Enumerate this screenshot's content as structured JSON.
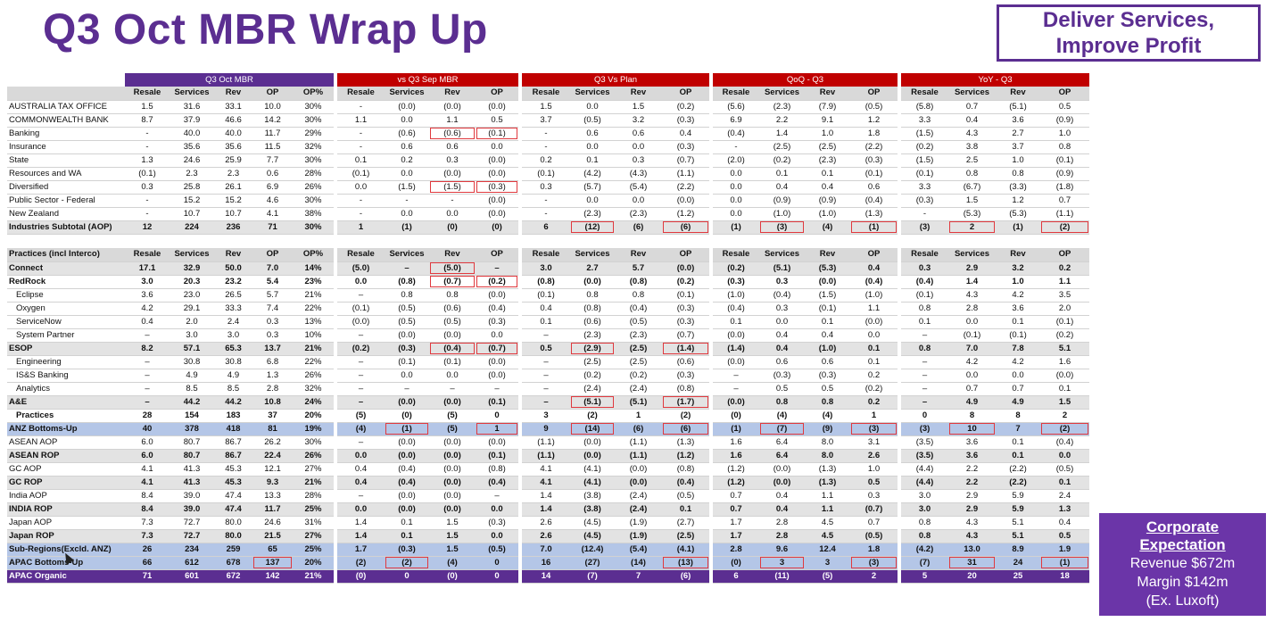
{
  "title": "Q3 Oct MBR Wrap Up",
  "callout": {
    "line1": "Deliver Services,",
    "line2": "Improve Profit"
  },
  "corporate": {
    "heading_line1": "Corporate",
    "heading_line2": "Expectation",
    "revenue": "Revenue $672m",
    "margin": "Margin $142m",
    "note": "(Ex. Luxoft)"
  },
  "groups": [
    "Q3 Oct MBR",
    "vs Q3 Sep MBR",
    "Q3 Vs Plan",
    "QoQ - Q3",
    "YoY - Q3"
  ],
  "col_headers_g1": [
    "Resale",
    "Services",
    "Rev",
    "OP",
    "OP%"
  ],
  "col_headers_gx": [
    "Resale",
    "Services",
    "Rev",
    "OP"
  ],
  "section1_label": "",
  "section2_label": "Practices (incl Interco)",
  "section1": [
    {
      "label": "AUSTRALIA TAX OFFICE",
      "style": "",
      "cells": [
        "1.5",
        "31.6",
        "33.1",
        "10.0",
        "30%",
        "-",
        "(0.0)",
        "(0.0)",
        "(0.0)",
        "1.5",
        "0.0",
        "1.5",
        "(0.2)",
        "(5.6)",
        "(2.3)",
        "(7.9)",
        "(0.5)",
        "(5.8)",
        "0.7",
        "(5.1)",
        "0.5"
      ],
      "hl": []
    },
    {
      "label": "COMMONWEALTH BANK",
      "style": "",
      "cells": [
        "8.7",
        "37.9",
        "46.6",
        "14.2",
        "30%",
        "1.1",
        "0.0",
        "1.1",
        "0.5",
        "3.7",
        "(0.5)",
        "3.2",
        "(0.3)",
        "6.9",
        "2.2",
        "9.1",
        "1.2",
        "3.3",
        "0.4",
        "3.6",
        "(0.9)"
      ],
      "hl": []
    },
    {
      "label": "Banking",
      "style": "",
      "cells": [
        "-",
        "40.0",
        "40.0",
        "11.7",
        "29%",
        "-",
        "(0.6)",
        "(0.6)",
        "(0.1)",
        "-",
        "0.6",
        "0.6",
        "0.4",
        "(0.4)",
        "1.4",
        "1.0",
        "1.8",
        "(1.5)",
        "4.3",
        "2.7",
        "1.0"
      ],
      "hl": [
        7,
        8
      ]
    },
    {
      "label": "Insurance",
      "style": "",
      "cells": [
        "-",
        "35.6",
        "35.6",
        "11.5",
        "32%",
        "-",
        "0.6",
        "0.6",
        "0.0",
        "-",
        "0.0",
        "0.0",
        "(0.3)",
        "-",
        "(2.5)",
        "(2.5)",
        "(2.2)",
        "(0.2)",
        "3.8",
        "3.7",
        "0.8"
      ],
      "hl": []
    },
    {
      "label": "State",
      "style": "",
      "cells": [
        "1.3",
        "24.6",
        "25.9",
        "7.7",
        "30%",
        "0.1",
        "0.2",
        "0.3",
        "(0.0)",
        "0.2",
        "0.1",
        "0.3",
        "(0.7)",
        "(2.0)",
        "(0.2)",
        "(2.3)",
        "(0.3)",
        "(1.5)",
        "2.5",
        "1.0",
        "(0.1)"
      ],
      "hl": []
    },
    {
      "label": "Resources and WA",
      "style": "",
      "cells": [
        "(0.1)",
        "2.3",
        "2.3",
        "0.6",
        "28%",
        "(0.1)",
        "0.0",
        "(0.0)",
        "(0.0)",
        "(0.1)",
        "(4.2)",
        "(4.3)",
        "(1.1)",
        "0.0",
        "0.1",
        "0.1",
        "(0.1)",
        "(0.1)",
        "0.8",
        "0.8",
        "(0.9)"
      ],
      "hl": []
    },
    {
      "label": "Diversified",
      "style": "",
      "cells": [
        "0.3",
        "25.8",
        "26.1",
        "6.9",
        "26%",
        "0.0",
        "(1.5)",
        "(1.5)",
        "(0.3)",
        "0.3",
        "(5.7)",
        "(5.4)",
        "(2.2)",
        "0.0",
        "0.4",
        "0.4",
        "0.6",
        "3.3",
        "(6.7)",
        "(3.3)",
        "(1.8)"
      ],
      "hl": [
        7,
        8
      ]
    },
    {
      "label": "Public Sector - Federal",
      "style": "",
      "cells": [
        "-",
        "15.2",
        "15.2",
        "4.6",
        "30%",
        "-",
        "-",
        "-",
        "(0.0)",
        "-",
        "0.0",
        "0.0",
        "(0.0)",
        "0.0",
        "(0.9)",
        "(0.9)",
        "(0.4)",
        "(0.3)",
        "1.5",
        "1.2",
        "0.7"
      ],
      "hl": []
    },
    {
      "label": "New Zealand",
      "style": "",
      "cells": [
        "-",
        "10.7",
        "10.7",
        "4.1",
        "38%",
        "-",
        "0.0",
        "0.0",
        "(0.0)",
        "-",
        "(2.3)",
        "(2.3)",
        "(1.2)",
        "0.0",
        "(1.0)",
        "(1.0)",
        "(1.3)",
        "-",
        "(5.3)",
        "(5.3)",
        "(1.1)"
      ],
      "hl": []
    },
    {
      "label": "Industries Subtotal (AOP)",
      "style": "b sh",
      "cells": [
        "12",
        "224",
        "236",
        "71",
        "30%",
        "1",
        "(1)",
        "(0)",
        "(0)",
        "6",
        "(12)",
        "(6)",
        "(6)",
        "(1)",
        "(3)",
        "(4)",
        "(1)",
        "(3)",
        "2",
        "(1)",
        "(2)"
      ],
      "hl": [
        10,
        12,
        14,
        16,
        18,
        20
      ]
    }
  ],
  "section2": [
    {
      "label": "Connect",
      "style": "b sh",
      "cells": [
        "17.1",
        "32.9",
        "50.0",
        "7.0",
        "14%",
        "(5.0)",
        "–",
        "(5.0)",
        "–",
        "3.0",
        "2.7",
        "5.7",
        "(0.0)",
        "(0.2)",
        "(5.1)",
        "(5.3)",
        "0.4",
        "0.3",
        "2.9",
        "3.2",
        "0.2"
      ],
      "hl": [
        7
      ]
    },
    {
      "label": "RedRock",
      "style": "b",
      "cells": [
        "3.0",
        "20.3",
        "23.2",
        "5.4",
        "23%",
        "0.0",
        "(0.8)",
        "(0.7)",
        "(0.2)",
        "(0.8)",
        "(0.0)",
        "(0.8)",
        "(0.2)",
        "(0.3)",
        "0.3",
        "(0.0)",
        "(0.4)",
        "(0.4)",
        "1.4",
        "1.0",
        "1.1"
      ],
      "hl": [
        7,
        8
      ]
    },
    {
      "label": "Eclipse",
      "style": "ind",
      "cells": [
        "3.6",
        "23.0",
        "26.5",
        "5.7",
        "21%",
        "–",
        "0.8",
        "0.8",
        "(0.0)",
        "(0.1)",
        "0.8",
        "0.8",
        "(0.1)",
        "(1.0)",
        "(0.4)",
        "(1.5)",
        "(1.0)",
        "(0.1)",
        "4.3",
        "4.2",
        "3.5"
      ],
      "hl": []
    },
    {
      "label": "Oxygen",
      "style": "ind",
      "cells": [
        "4.2",
        "29.1",
        "33.3",
        "7.4",
        "22%",
        "(0.1)",
        "(0.5)",
        "(0.6)",
        "(0.4)",
        "0.4",
        "(0.8)",
        "(0.4)",
        "(0.3)",
        "(0.4)",
        "0.3",
        "(0.1)",
        "1.1",
        "0.8",
        "2.8",
        "3.6",
        "2.0"
      ],
      "hl": []
    },
    {
      "label": "ServiceNow",
      "style": "ind",
      "cells": [
        "0.4",
        "2.0",
        "2.4",
        "0.3",
        "13%",
        "(0.0)",
        "(0.5)",
        "(0.5)",
        "(0.3)",
        "0.1",
        "(0.6)",
        "(0.5)",
        "(0.3)",
        "0.1",
        "0.0",
        "0.1",
        "(0.0)",
        "0.1",
        "0.0",
        "0.1",
        "(0.1)"
      ],
      "hl": []
    },
    {
      "label": "System Partner",
      "style": "ind",
      "cells": [
        "–",
        "3.0",
        "3.0",
        "0.3",
        "10%",
        "–",
        "(0.0)",
        "(0.0)",
        "0.0",
        "–",
        "(2.3)",
        "(2.3)",
        "(0.7)",
        "(0.0)",
        "0.4",
        "0.4",
        "0.0",
        "–",
        "(0.1)",
        "(0.1)",
        "(0.2)"
      ],
      "hl": []
    },
    {
      "label": "ESOP",
      "style": "b sh",
      "cells": [
        "8.2",
        "57.1",
        "65.3",
        "13.7",
        "21%",
        "(0.2)",
        "(0.3)",
        "(0.4)",
        "(0.7)",
        "0.5",
        "(2.9)",
        "(2.5)",
        "(1.4)",
        "(1.4)",
        "0.4",
        "(1.0)",
        "0.1",
        "0.8",
        "7.0",
        "7.8",
        "5.1"
      ],
      "hl": [
        7,
        8,
        10,
        12
      ]
    },
    {
      "label": "Engineering",
      "style": "ind",
      "cells": [
        "–",
        "30.8",
        "30.8",
        "6.8",
        "22%",
        "–",
        "(0.1)",
        "(0.1)",
        "(0.0)",
        "–",
        "(2.5)",
        "(2.5)",
        "(0.6)",
        "(0.0)",
        "0.6",
        "0.6",
        "0.1",
        "–",
        "4.2",
        "4.2",
        "1.6"
      ],
      "hl": []
    },
    {
      "label": "IS&S Banking",
      "style": "ind",
      "cells": [
        "–",
        "4.9",
        "4.9",
        "1.3",
        "26%",
        "–",
        "0.0",
        "0.0",
        "(0.0)",
        "–",
        "(0.2)",
        "(0.2)",
        "(0.3)",
        "–",
        "(0.3)",
        "(0.3)",
        "0.2",
        "–",
        "0.0",
        "0.0",
        "(0.0)"
      ],
      "hl": []
    },
    {
      "label": "Analytics",
      "style": "ind",
      "cells": [
        "–",
        "8.5",
        "8.5",
        "2.8",
        "32%",
        "–",
        "–",
        "–",
        "–",
        "–",
        "(2.4)",
        "(2.4)",
        "(0.8)",
        "–",
        "0.5",
        "0.5",
        "(0.2)",
        "–",
        "0.7",
        "0.7",
        "0.1"
      ],
      "hl": []
    },
    {
      "label": "A&E",
      "style": "b sh",
      "cells": [
        "–",
        "44.2",
        "44.2",
        "10.8",
        "24%",
        "–",
        "(0.0)",
        "(0.0)",
        "(0.1)",
        "–",
        "(5.1)",
        "(5.1)",
        "(1.7)",
        "(0.0)",
        "0.8",
        "0.8",
        "0.2",
        "–",
        "4.9",
        "4.9",
        "1.5"
      ],
      "hl": [
        10,
        12
      ]
    },
    {
      "label": "Practices",
      "style": "b ind",
      "cells": [
        "28",
        "154",
        "183",
        "37",
        "20%",
        "(5)",
        "(0)",
        "(5)",
        "0",
        "3",
        "(2)",
        "1",
        "(2)",
        "(0)",
        "(4)",
        "(4)",
        "1",
        "0",
        "8",
        "8",
        "2"
      ],
      "hl": []
    },
    {
      "label": "ANZ Bottoms-Up",
      "style": "b bl",
      "cells": [
        "40",
        "378",
        "418",
        "81",
        "19%",
        "(4)",
        "(1)",
        "(5)",
        "1",
        "9",
        "(14)",
        "(6)",
        "(6)",
        "(1)",
        "(7)",
        "(9)",
        "(3)",
        "(3)",
        "10",
        "7",
        "(2)"
      ],
      "hl": [
        6,
        8,
        10,
        12,
        14,
        16,
        18,
        20
      ]
    },
    {
      "label": "ASEAN AOP",
      "style": "",
      "cells": [
        "6.0",
        "80.7",
        "86.7",
        "26.2",
        "30%",
        "–",
        "(0.0)",
        "(0.0)",
        "(0.0)",
        "(1.1)",
        "(0.0)",
        "(1.1)",
        "(1.3)",
        "1.6",
        "6.4",
        "8.0",
        "3.1",
        "(3.5)",
        "3.6",
        "0.1",
        "(0.4)"
      ],
      "hl": []
    },
    {
      "label": "ASEAN  ROP",
      "style": "b sh",
      "cells": [
        "6.0",
        "80.7",
        "86.7",
        "22.4",
        "26%",
        "0.0",
        "(0.0)",
        "(0.0)",
        "(0.1)",
        "(1.1)",
        "(0.0)",
        "(1.1)",
        "(1.2)",
        "1.6",
        "6.4",
        "8.0",
        "2.6",
        "(3.5)",
        "3.6",
        "0.1",
        "0.0"
      ],
      "hl": []
    },
    {
      "label": "GC AOP",
      "style": "",
      "cells": [
        "4.1",
        "41.3",
        "45.3",
        "12.1",
        "27%",
        "0.4",
        "(0.4)",
        "(0.0)",
        "(0.8)",
        "4.1",
        "(4.1)",
        "(0.0)",
        "(0.8)",
        "(1.2)",
        "(0.0)",
        "(1.3)",
        "1.0",
        "(4.4)",
        "2.2",
        "(2.2)",
        "(0.5)"
      ],
      "hl": []
    },
    {
      "label": "GC  ROP",
      "style": "b sh",
      "cells": [
        "4.1",
        "41.3",
        "45.3",
        "9.3",
        "21%",
        "0.4",
        "(0.4)",
        "(0.0)",
        "(0.4)",
        "4.1",
        "(4.1)",
        "(0.0)",
        "(0.4)",
        "(1.2)",
        "(0.0)",
        "(1.3)",
        "0.5",
        "(4.4)",
        "2.2",
        "(2.2)",
        "0.1"
      ],
      "hl": []
    },
    {
      "label": "India AOP",
      "style": "",
      "cells": [
        "8.4",
        "39.0",
        "47.4",
        "13.3",
        "28%",
        "–",
        "(0.0)",
        "(0.0)",
        "–",
        "1.4",
        "(3.8)",
        "(2.4)",
        "(0.5)",
        "0.7",
        "0.4",
        "1.1",
        "0.3",
        "3.0",
        "2.9",
        "5.9",
        "2.4"
      ],
      "hl": []
    },
    {
      "label": "INDIA  ROP",
      "style": "b sh",
      "cells": [
        "8.4",
        "39.0",
        "47.4",
        "11.7",
        "25%",
        "0.0",
        "(0.0)",
        "(0.0)",
        "0.0",
        "1.4",
        "(3.8)",
        "(2.4)",
        "0.1",
        "0.7",
        "0.4",
        "1.1",
        "(0.7)",
        "3.0",
        "2.9",
        "5.9",
        "1.3"
      ],
      "hl": []
    },
    {
      "label": "Japan AOP",
      "style": "",
      "cells": [
        "7.3",
        "72.7",
        "80.0",
        "24.6",
        "31%",
        "1.4",
        "0.1",
        "1.5",
        "(0.3)",
        "2.6",
        "(4.5)",
        "(1.9)",
        "(2.7)",
        "1.7",
        "2.8",
        "4.5",
        "0.7",
        "0.8",
        "4.3",
        "5.1",
        "0.4"
      ],
      "hl": []
    },
    {
      "label": "Japan ROP",
      "style": "b sh",
      "cells": [
        "7.3",
        "72.7",
        "80.0",
        "21.5",
        "27%",
        "1.4",
        "0.1",
        "1.5",
        "0.0",
        "2.6",
        "(4.5)",
        "(1.9)",
        "(2.5)",
        "1.7",
        "2.8",
        "4.5",
        "(0.5)",
        "0.8",
        "4.3",
        "5.1",
        "0.5"
      ],
      "hl": []
    },
    {
      "label": "Sub-Regions(Excld. ANZ)",
      "style": "b bl",
      "cells": [
        "26",
        "234",
        "259",
        "65",
        "25%",
        "1.7",
        "(0.3)",
        "1.5",
        "(0.5)",
        "7.0",
        "(12.4)",
        "(5.4)",
        "(4.1)",
        "2.8",
        "9.6",
        "12.4",
        "1.8",
        "(4.2)",
        "13.0",
        "8.9",
        "1.9"
      ],
      "hl": []
    },
    {
      "label": "APAC Bottoms-Up",
      "style": "b bl",
      "cells": [
        "66",
        "612",
        "678",
        "137",
        "20%",
        "(2)",
        "(2)",
        "(4)",
        "0",
        "16",
        "(27)",
        "(14)",
        "(13)",
        "(0)",
        "3",
        "3",
        "(3)",
        "(7)",
        "31",
        "24",
        "(1)"
      ],
      "hl": [
        3,
        6,
        12,
        14,
        16,
        18,
        20
      ]
    },
    {
      "label": "APAC Organic",
      "style": "pu",
      "cells": [
        "71",
        "601",
        "672",
        "142",
        "21%",
        "(0)",
        "0",
        "(0)",
        "0",
        "14",
        "(7)",
        "7",
        "(6)",
        "6",
        "(11)",
        "(5)",
        "2",
        "5",
        "20",
        "25",
        "18"
      ],
      "hl": []
    }
  ]
}
